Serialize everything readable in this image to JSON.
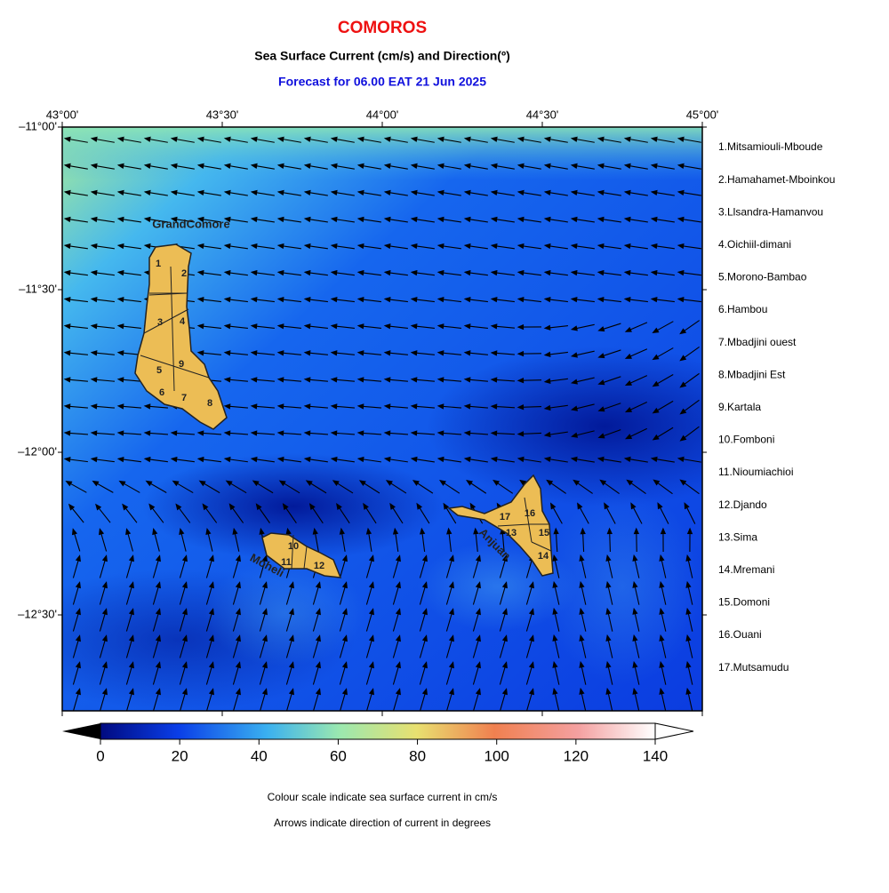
{
  "header": {
    "title": "COMOROS",
    "subtitle": "Sea Surface Current (cm/s) and Direction(º)",
    "forecast": "Forecast for  06.00 EAT 21 Jun 2025"
  },
  "map": {
    "xlim": [
      43,
      45
    ],
    "ylim": [
      -12.795,
      -11
    ],
    "xticks": [
      {
        "value": 43,
        "label": "43°00'"
      },
      {
        "value": 43.5,
        "label": "43°30'"
      },
      {
        "value": 44,
        "label": "44°00'"
      },
      {
        "value": 44.5,
        "label": "44°30'"
      },
      {
        "value": 45,
        "label": "45°00'"
      }
    ],
    "yticks": [
      {
        "value": -11,
        "label": "–11°00'"
      },
      {
        "value": -11.5,
        "label": "–11°30'"
      },
      {
        "value": -12,
        "label": "–12°00'"
      },
      {
        "value": -12.5,
        "label": "–12°30'"
      }
    ],
    "islands": [
      "GrandComore",
      "Moheli",
      "Anjuan"
    ],
    "district_numbers": [
      "1",
      "2",
      "3",
      "4",
      "5",
      "6",
      "7",
      "8",
      "9",
      "10",
      "11",
      "12",
      "13",
      "14",
      "15",
      "16",
      "17"
    ],
    "districts": [
      "1.Mitsamiouli-Mboude",
      "2.Hamahamet-Mboinkou",
      "3.Llsandra-Hamanvou",
      "4.Oichiil-dimani",
      "5.Morono-Bambao",
      "6.Hambou",
      "7.Mbadjini ouest",
      "8.Mbadjini Est",
      "9.Kartala",
      "10.Fomboni",
      "11.Nioumiachioi",
      "12.Djando",
      "13.Sima",
      "14.Mremani",
      "15.Domoni",
      "16.Ouani",
      "17.Mutsamudu"
    ]
  },
  "colorbar": {
    "range": [
      0,
      140
    ],
    "ticks": [
      0,
      20,
      40,
      60,
      80,
      100,
      120,
      140
    ]
  },
  "notes": [
    "Colour scale indicate sea surface current in cm/s",
    "Arrows indicate direction of current in degrees"
  ]
}
